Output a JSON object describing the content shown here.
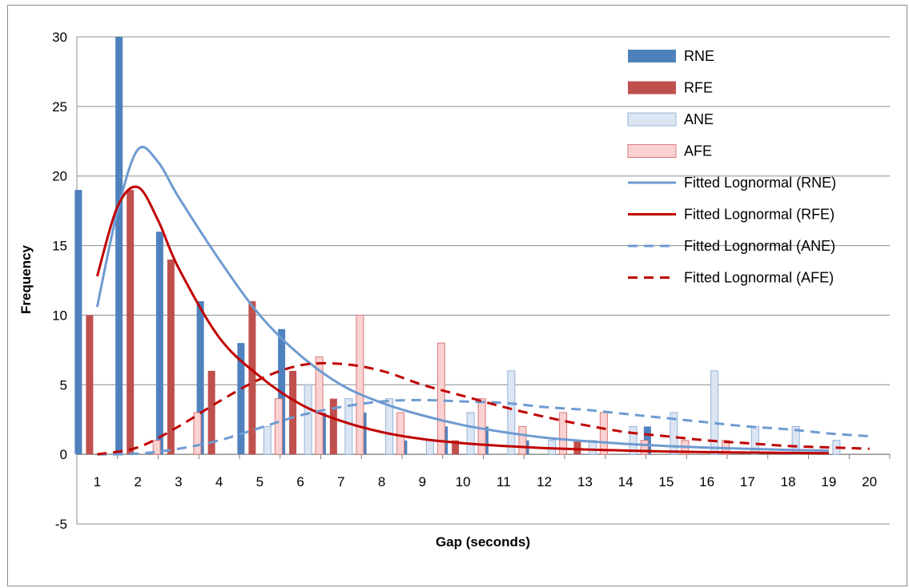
{
  "chart_data": {
    "type": "bar",
    "xlabel": "Gap (seconds)",
    "ylabel": "Frequency",
    "ylim": [
      -5,
      30
    ],
    "yticks": [
      30,
      25,
      20,
      15,
      10,
      5,
      0,
      -5
    ],
    "categories": [
      "1",
      "2",
      "3",
      "4",
      "5",
      "6",
      "7",
      "8",
      "9",
      "10",
      "11",
      "12",
      "13",
      "14",
      "15",
      "16",
      "17",
      "18",
      "19",
      "20"
    ],
    "grid": true,
    "legend_position": "top-right",
    "series": [
      {
        "name": "RNE",
        "kind": "bar",
        "color": "#4F81BD",
        "values": [
          19,
          30,
          16,
          11,
          8,
          9,
          3,
          3,
          1,
          2,
          2,
          1,
          0,
          0,
          2,
          0,
          0,
          0,
          0,
          0
        ]
      },
      {
        "name": "RFE",
        "kind": "bar",
        "color": "#C0504D",
        "values": [
          10,
          19,
          14,
          6,
          11,
          6,
          4,
          0,
          0,
          1,
          0,
          0,
          1,
          0,
          0,
          0,
          0,
          0,
          0,
          0
        ]
      },
      {
        "name": "ANE",
        "kind": "bar",
        "color": "#DCE6F2",
        "edge": "#95B3D7",
        "values": [
          0,
          0,
          0,
          0,
          2,
          5,
          4,
          4,
          1,
          3,
          6,
          1,
          1,
          2,
          3,
          6,
          2,
          2,
          1,
          0
        ]
      },
      {
        "name": "AFE",
        "kind": "bar",
        "color": "#F9D2D1",
        "edge": "#D9797A",
        "values": [
          0,
          1,
          3,
          0,
          4,
          7,
          10,
          3,
          8,
          4,
          2,
          3,
          3,
          1,
          1,
          1,
          0,
          0,
          0,
          0
        ]
      },
      {
        "name": "Fitted Lognormal (RNE)",
        "kind": "line",
        "dash": false,
        "color": "#6E9BD1",
        "x": [
          1,
          1.5,
          2,
          2.5,
          3,
          4,
          5,
          6,
          7,
          8,
          9,
          10,
          11,
          12,
          13,
          14,
          15,
          16,
          17,
          18,
          19
        ],
        "values": [
          10.6,
          17.5,
          21.9,
          21,
          18.5,
          14,
          10,
          7.1,
          5,
          3.7,
          2.8,
          2.1,
          1.6,
          1.2,
          0.95,
          0.75,
          0.6,
          0.48,
          0.4,
          0.32,
          0.27
        ]
      },
      {
        "name": "Fitted Lognormal (RFE)",
        "kind": "line",
        "dash": false,
        "color": "#C00000",
        "x": [
          1,
          1.5,
          2,
          2.5,
          3,
          4,
          5,
          6,
          7,
          8,
          9,
          10,
          11,
          12,
          13,
          14,
          15,
          16,
          17,
          18,
          19
        ],
        "values": [
          12.8,
          17.8,
          19.2,
          16.8,
          13.4,
          8.4,
          5.6,
          3.6,
          2.4,
          1.6,
          1.1,
          0.8,
          0.6,
          0.45,
          0.35,
          0.27,
          0.2,
          0.16,
          0.13,
          0.1,
          0.08
        ]
      },
      {
        "name": "Fitted Lognormal (ANE)",
        "kind": "line",
        "dash": true,
        "color": "#6E9BD1",
        "x": [
          1,
          2,
          3,
          4,
          5,
          6,
          7,
          8,
          9,
          10,
          11,
          12,
          13,
          14,
          15,
          16,
          17,
          18,
          19,
          20
        ],
        "values": [
          0,
          0.05,
          0.4,
          1,
          1.9,
          2.8,
          3.4,
          3.8,
          3.9,
          3.8,
          3.7,
          3.4,
          3.2,
          2.9,
          2.6,
          2.3,
          2,
          1.8,
          1.5,
          1.3
        ]
      },
      {
        "name": "Fitted Lognormal (AFE)",
        "kind": "line",
        "dash": true,
        "color": "#C00000",
        "x": [
          1,
          2,
          3,
          4,
          5,
          6,
          7,
          8,
          9,
          10,
          11,
          12,
          13,
          14,
          15,
          16,
          17,
          18,
          19,
          20
        ],
        "values": [
          0,
          0.5,
          2,
          3.8,
          5.4,
          6.4,
          6.5,
          6,
          5,
          4.2,
          3.4,
          2.7,
          2.1,
          1.6,
          1.3,
          1,
          0.8,
          0.6,
          0.5,
          0.4
        ]
      }
    ]
  }
}
